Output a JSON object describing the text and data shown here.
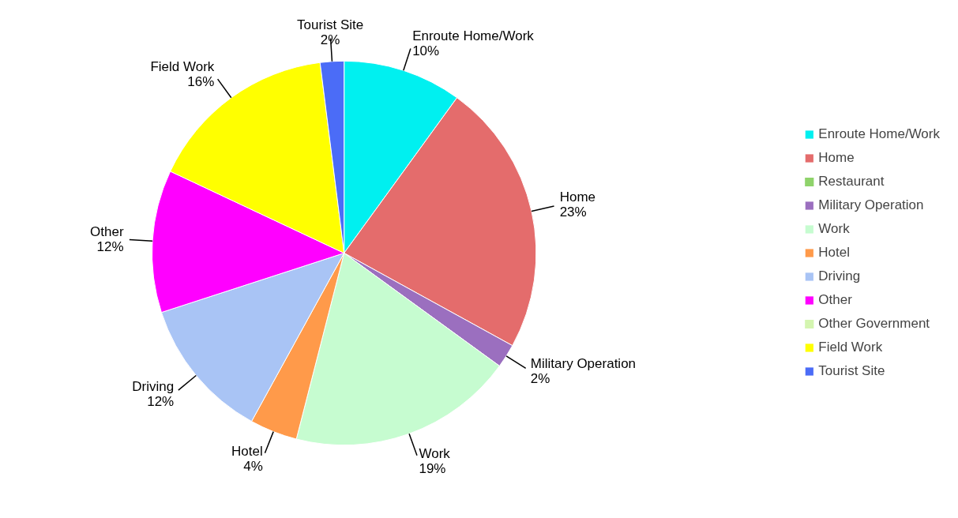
{
  "chart_data": {
    "type": "pie",
    "categories": [
      "Enroute Home/Work",
      "Home",
      "Restaurant",
      "Military Operation",
      "Work",
      "Hotel",
      "Driving",
      "Other",
      "Other Government",
      "Field Work",
      "Tourist Site"
    ],
    "values": [
      10,
      23,
      0,
      2,
      19,
      4,
      12,
      12,
      0,
      16,
      2
    ],
    "value_labels": [
      "10%",
      "23%",
      null,
      "2%",
      "19%",
      "4%",
      "12%",
      "12%",
      null,
      "16%",
      "2%"
    ],
    "colors": [
      "#00f0f0",
      "#e46c6c",
      "#8fd36b",
      "#9b6fbf",
      "#c6fcd0",
      "#ff9a4a",
      "#a9c4f5",
      "#ff00ff",
      "#d4f5b0",
      "#ffff00",
      "#4b6cf7"
    ],
    "legend": "right"
  }
}
